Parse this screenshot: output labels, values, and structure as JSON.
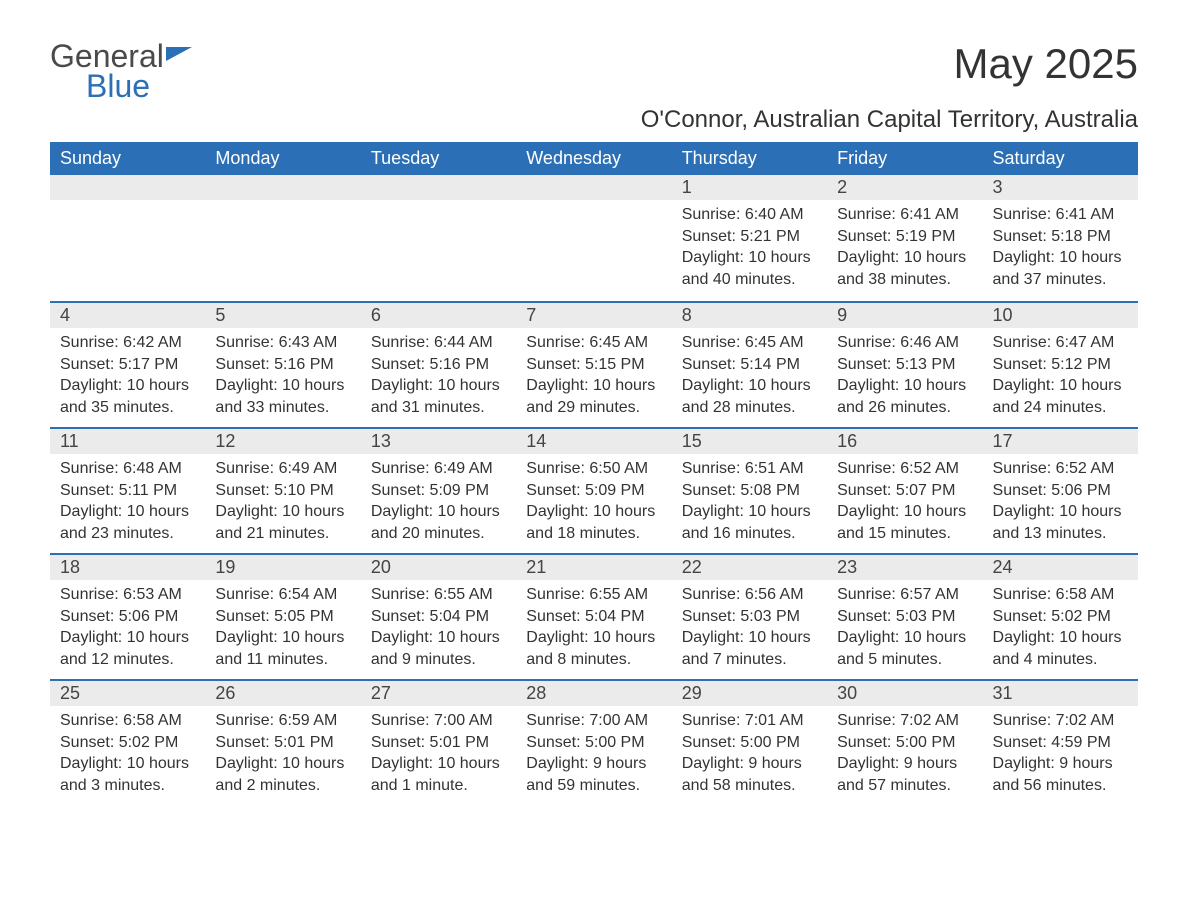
{
  "brand": {
    "part1": "General",
    "part2": "Blue"
  },
  "title": "May 2025",
  "location": "O'Connor, Australian Capital Territory, Australia",
  "colors": {
    "header_bg": "#2b6fb6",
    "header_text": "#ffffff",
    "daynum_bg": "#ebebeb",
    "row_border": "#2b6fb6",
    "body_text": "#333333",
    "page_bg": "#ffffff"
  },
  "typography": {
    "title_fontsize": 42,
    "location_fontsize": 24,
    "dayhead_fontsize": 18,
    "cell_fontsize": 16
  },
  "day_headers": [
    "Sunday",
    "Monday",
    "Tuesday",
    "Wednesday",
    "Thursday",
    "Friday",
    "Saturday"
  ],
  "weeks": [
    [
      null,
      null,
      null,
      null,
      {
        "num": "1",
        "sunrise": "Sunrise: 6:40 AM",
        "sunset": "Sunset: 5:21 PM",
        "daylight": "Daylight: 10 hours and 40 minutes."
      },
      {
        "num": "2",
        "sunrise": "Sunrise: 6:41 AM",
        "sunset": "Sunset: 5:19 PM",
        "daylight": "Daylight: 10 hours and 38 minutes."
      },
      {
        "num": "3",
        "sunrise": "Sunrise: 6:41 AM",
        "sunset": "Sunset: 5:18 PM",
        "daylight": "Daylight: 10 hours and 37 minutes."
      }
    ],
    [
      {
        "num": "4",
        "sunrise": "Sunrise: 6:42 AM",
        "sunset": "Sunset: 5:17 PM",
        "daylight": "Daylight: 10 hours and 35 minutes."
      },
      {
        "num": "5",
        "sunrise": "Sunrise: 6:43 AM",
        "sunset": "Sunset: 5:16 PM",
        "daylight": "Daylight: 10 hours and 33 minutes."
      },
      {
        "num": "6",
        "sunrise": "Sunrise: 6:44 AM",
        "sunset": "Sunset: 5:16 PM",
        "daylight": "Daylight: 10 hours and 31 minutes."
      },
      {
        "num": "7",
        "sunrise": "Sunrise: 6:45 AM",
        "sunset": "Sunset: 5:15 PM",
        "daylight": "Daylight: 10 hours and 29 minutes."
      },
      {
        "num": "8",
        "sunrise": "Sunrise: 6:45 AM",
        "sunset": "Sunset: 5:14 PM",
        "daylight": "Daylight: 10 hours and 28 minutes."
      },
      {
        "num": "9",
        "sunrise": "Sunrise: 6:46 AM",
        "sunset": "Sunset: 5:13 PM",
        "daylight": "Daylight: 10 hours and 26 minutes."
      },
      {
        "num": "10",
        "sunrise": "Sunrise: 6:47 AM",
        "sunset": "Sunset: 5:12 PM",
        "daylight": "Daylight: 10 hours and 24 minutes."
      }
    ],
    [
      {
        "num": "11",
        "sunrise": "Sunrise: 6:48 AM",
        "sunset": "Sunset: 5:11 PM",
        "daylight": "Daylight: 10 hours and 23 minutes."
      },
      {
        "num": "12",
        "sunrise": "Sunrise: 6:49 AM",
        "sunset": "Sunset: 5:10 PM",
        "daylight": "Daylight: 10 hours and 21 minutes."
      },
      {
        "num": "13",
        "sunrise": "Sunrise: 6:49 AM",
        "sunset": "Sunset: 5:09 PM",
        "daylight": "Daylight: 10 hours and 20 minutes."
      },
      {
        "num": "14",
        "sunrise": "Sunrise: 6:50 AM",
        "sunset": "Sunset: 5:09 PM",
        "daylight": "Daylight: 10 hours and 18 minutes."
      },
      {
        "num": "15",
        "sunrise": "Sunrise: 6:51 AM",
        "sunset": "Sunset: 5:08 PM",
        "daylight": "Daylight: 10 hours and 16 minutes."
      },
      {
        "num": "16",
        "sunrise": "Sunrise: 6:52 AM",
        "sunset": "Sunset: 5:07 PM",
        "daylight": "Daylight: 10 hours and 15 minutes."
      },
      {
        "num": "17",
        "sunrise": "Sunrise: 6:52 AM",
        "sunset": "Sunset: 5:06 PM",
        "daylight": "Daylight: 10 hours and 13 minutes."
      }
    ],
    [
      {
        "num": "18",
        "sunrise": "Sunrise: 6:53 AM",
        "sunset": "Sunset: 5:06 PM",
        "daylight": "Daylight: 10 hours and 12 minutes."
      },
      {
        "num": "19",
        "sunrise": "Sunrise: 6:54 AM",
        "sunset": "Sunset: 5:05 PM",
        "daylight": "Daylight: 10 hours and 11 minutes."
      },
      {
        "num": "20",
        "sunrise": "Sunrise: 6:55 AM",
        "sunset": "Sunset: 5:04 PM",
        "daylight": "Daylight: 10 hours and 9 minutes."
      },
      {
        "num": "21",
        "sunrise": "Sunrise: 6:55 AM",
        "sunset": "Sunset: 5:04 PM",
        "daylight": "Daylight: 10 hours and 8 minutes."
      },
      {
        "num": "22",
        "sunrise": "Sunrise: 6:56 AM",
        "sunset": "Sunset: 5:03 PM",
        "daylight": "Daylight: 10 hours and 7 minutes."
      },
      {
        "num": "23",
        "sunrise": "Sunrise: 6:57 AM",
        "sunset": "Sunset: 5:03 PM",
        "daylight": "Daylight: 10 hours and 5 minutes."
      },
      {
        "num": "24",
        "sunrise": "Sunrise: 6:58 AM",
        "sunset": "Sunset: 5:02 PM",
        "daylight": "Daylight: 10 hours and 4 minutes."
      }
    ],
    [
      {
        "num": "25",
        "sunrise": "Sunrise: 6:58 AM",
        "sunset": "Sunset: 5:02 PM",
        "daylight": "Daylight: 10 hours and 3 minutes."
      },
      {
        "num": "26",
        "sunrise": "Sunrise: 6:59 AM",
        "sunset": "Sunset: 5:01 PM",
        "daylight": "Daylight: 10 hours and 2 minutes."
      },
      {
        "num": "27",
        "sunrise": "Sunrise: 7:00 AM",
        "sunset": "Sunset: 5:01 PM",
        "daylight": "Daylight: 10 hours and 1 minute."
      },
      {
        "num": "28",
        "sunrise": "Sunrise: 7:00 AM",
        "sunset": "Sunset: 5:00 PM",
        "daylight": "Daylight: 9 hours and 59 minutes."
      },
      {
        "num": "29",
        "sunrise": "Sunrise: 7:01 AM",
        "sunset": "Sunset: 5:00 PM",
        "daylight": "Daylight: 9 hours and 58 minutes."
      },
      {
        "num": "30",
        "sunrise": "Sunrise: 7:02 AM",
        "sunset": "Sunset: 5:00 PM",
        "daylight": "Daylight: 9 hours and 57 minutes."
      },
      {
        "num": "31",
        "sunrise": "Sunrise: 7:02 AM",
        "sunset": "Sunset: 4:59 PM",
        "daylight": "Daylight: 9 hours and 56 minutes."
      }
    ]
  ]
}
